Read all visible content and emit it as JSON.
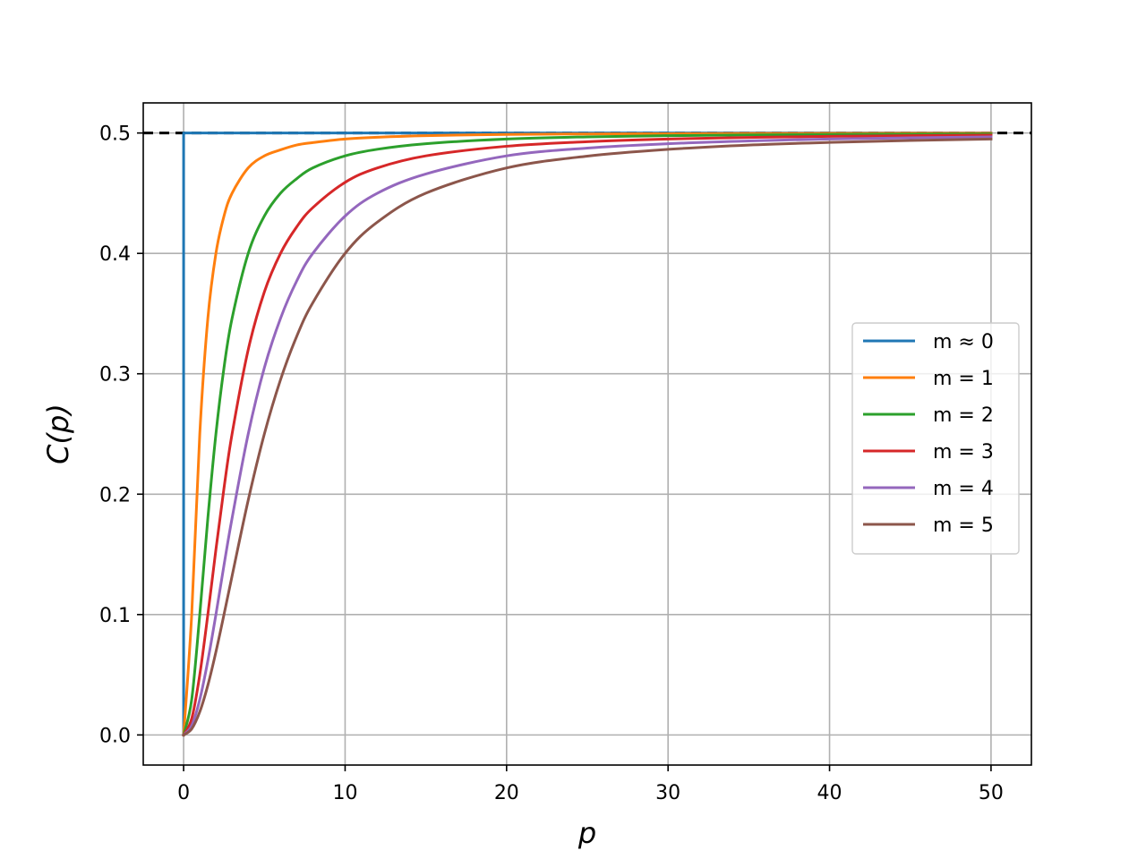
{
  "chart_data": {
    "type": "line",
    "title": "",
    "xlabel": "p",
    "ylabel": "C(p)",
    "xlim": [
      -2.5,
      52.5
    ],
    "ylim": [
      -0.025,
      0.525
    ],
    "xticks": [
      0,
      10,
      20,
      30,
      40,
      50
    ],
    "yticks": [
      0.0,
      0.1,
      0.2,
      0.3,
      0.4,
      0.5
    ],
    "xtick_labels": [
      "0",
      "10",
      "20",
      "30",
      "40",
      "50"
    ],
    "ytick_labels": [
      "0.0",
      "0.1",
      "0.2",
      "0.3",
      "0.4",
      "0.5"
    ],
    "grid": true,
    "legend_position": "center-right",
    "reference_line": {
      "y": 0.5,
      "style": "dashed",
      "color": "#000000"
    },
    "x": [
      0,
      0.5,
      1,
      1.5,
      2,
      2.5,
      3,
      4,
      5,
      6,
      7,
      8,
      10,
      12,
      15,
      20,
      25,
      30,
      35,
      40,
      45,
      50
    ],
    "series": [
      {
        "name": "m ≈ 0",
        "color": "#1f77b4",
        "values": [
          0,
          0.5,
          0.5,
          0.5,
          0.5,
          0.5,
          0.5,
          0.5,
          0.5,
          0.5,
          0.5,
          0.5,
          0.5,
          0.5,
          0.5,
          0.5,
          0.5,
          0.5,
          0.5,
          0.5,
          0.5,
          0.5
        ]
      },
      {
        "name": "m = 1",
        "color": "#ff7f0e",
        "values": [
          0,
          0.1,
          0.25,
          0.346,
          0.4,
          0.431,
          0.45,
          0.471,
          0.481,
          0.486,
          0.49,
          0.492,
          0.495,
          0.4965,
          0.4978,
          0.4988,
          0.4992,
          0.4994,
          0.4996,
          0.4997,
          0.4998,
          0.4998
        ]
      },
      {
        "name": "m = 2",
        "color": "#2ca02c",
        "values": [
          0,
          0.0294,
          0.1,
          0.18,
          0.25,
          0.305,
          0.346,
          0.4,
          0.431,
          0.45,
          0.462,
          0.471,
          0.481,
          0.4865,
          0.4911,
          0.495,
          0.4968,
          0.4978,
          0.4984,
          0.4988,
          0.499,
          0.4992
        ]
      },
      {
        "name": "m = 3",
        "color": "#d62728",
        "values": [
          0,
          0.0135,
          0.05,
          0.1,
          0.154,
          0.205,
          0.25,
          0.32,
          0.368,
          0.4,
          0.422,
          0.438,
          0.459,
          0.471,
          0.481,
          0.489,
          0.4928,
          0.495,
          0.4963,
          0.4972,
          0.4978,
          0.4982
        ]
      },
      {
        "name": "m = 4",
        "color": "#9467bd",
        "values": [
          0,
          0.0077,
          0.0294,
          0.0617,
          0.1,
          0.141,
          0.18,
          0.25,
          0.305,
          0.346,
          0.377,
          0.4,
          0.431,
          0.45,
          0.466,
          0.481,
          0.4875,
          0.4911,
          0.4934,
          0.495,
          0.496,
          0.4968
        ]
      },
      {
        "name": "m = 5",
        "color": "#8c564b",
        "values": [
          0,
          0.005,
          0.0192,
          0.0413,
          0.069,
          0.1,
          0.132,
          0.195,
          0.25,
          0.295,
          0.331,
          0.359,
          0.4,
          0.426,
          0.45,
          0.471,
          0.4808,
          0.4864,
          0.49,
          0.4922,
          0.4938,
          0.495
        ]
      }
    ]
  }
}
